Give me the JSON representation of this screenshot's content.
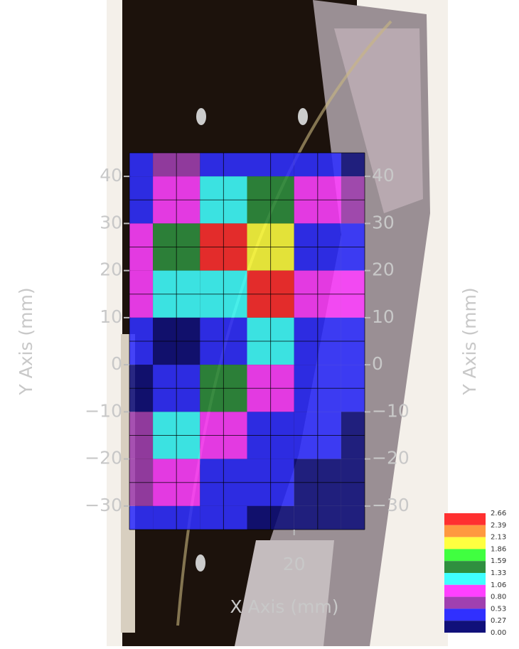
{
  "chart_data": {
    "type": "contour",
    "x_label": "X Axis (mm)",
    "y_label": "Y Axis (mm)",
    "xlim": [
      -15,
      35
    ],
    "ylim": [
      -35,
      45
    ],
    "xticks": [
      20
    ],
    "yticks": [
      {
        "value": -30,
        "label": "−30"
      },
      {
        "value": -20,
        "label": "−20"
      },
      {
        "value": -10,
        "label": "−10"
      },
      0,
      10,
      20,
      30,
      40
    ],
    "grid": true,
    "x": [
      -15,
      -5,
      5,
      15,
      25,
      35
    ],
    "y": [
      45,
      35,
      25,
      15,
      5,
      -5,
      -15,
      -25,
      -35
    ],
    "z": [
      [
        0.3,
        0.6,
        0.5,
        0.4,
        0.3,
        0.2
      ],
      [
        0.4,
        0.9,
        1.3,
        1.5,
        1.0,
        0.7
      ],
      [
        0.9,
        1.5,
        2.5,
        1.9,
        0.4,
        0.3
      ],
      [
        0.8,
        1.1,
        1.2,
        2.7,
        1.0,
        0.9
      ],
      [
        0.3,
        0.2,
        0.5,
        1.2,
        0.5,
        0.3
      ],
      [
        0.1,
        0.5,
        1.5,
        0.9,
        0.5,
        0.3
      ],
      [
        0.7,
        1.2,
        0.8,
        0.4,
        0.3,
        0.2
      ],
      [
        0.6,
        0.8,
        0.5,
        0.3,
        0.2,
        0.2
      ],
      [
        0.3,
        0.3,
        0.3,
        0.2,
        0.2,
        0.2
      ]
    ],
    "levels": [
      2.66,
      2.39,
      2.13,
      1.86,
      1.59,
      1.33,
      1.06,
      {
        "value": 0.8,
        "label": "0.80"
      },
      0.53,
      0.27,
      {
        "value": 0,
        "label": "0.00"
      }
    ],
    "level_colors": [
      "#ff3030",
      "#ff9940",
      "#ffff40",
      "#40ff40",
      "#2f8f3f",
      "#40ffff",
      "#ff40ff",
      "#a040b0",
      "#3030ff",
      "#10107a"
    ],
    "legend": "lower-right"
  }
}
